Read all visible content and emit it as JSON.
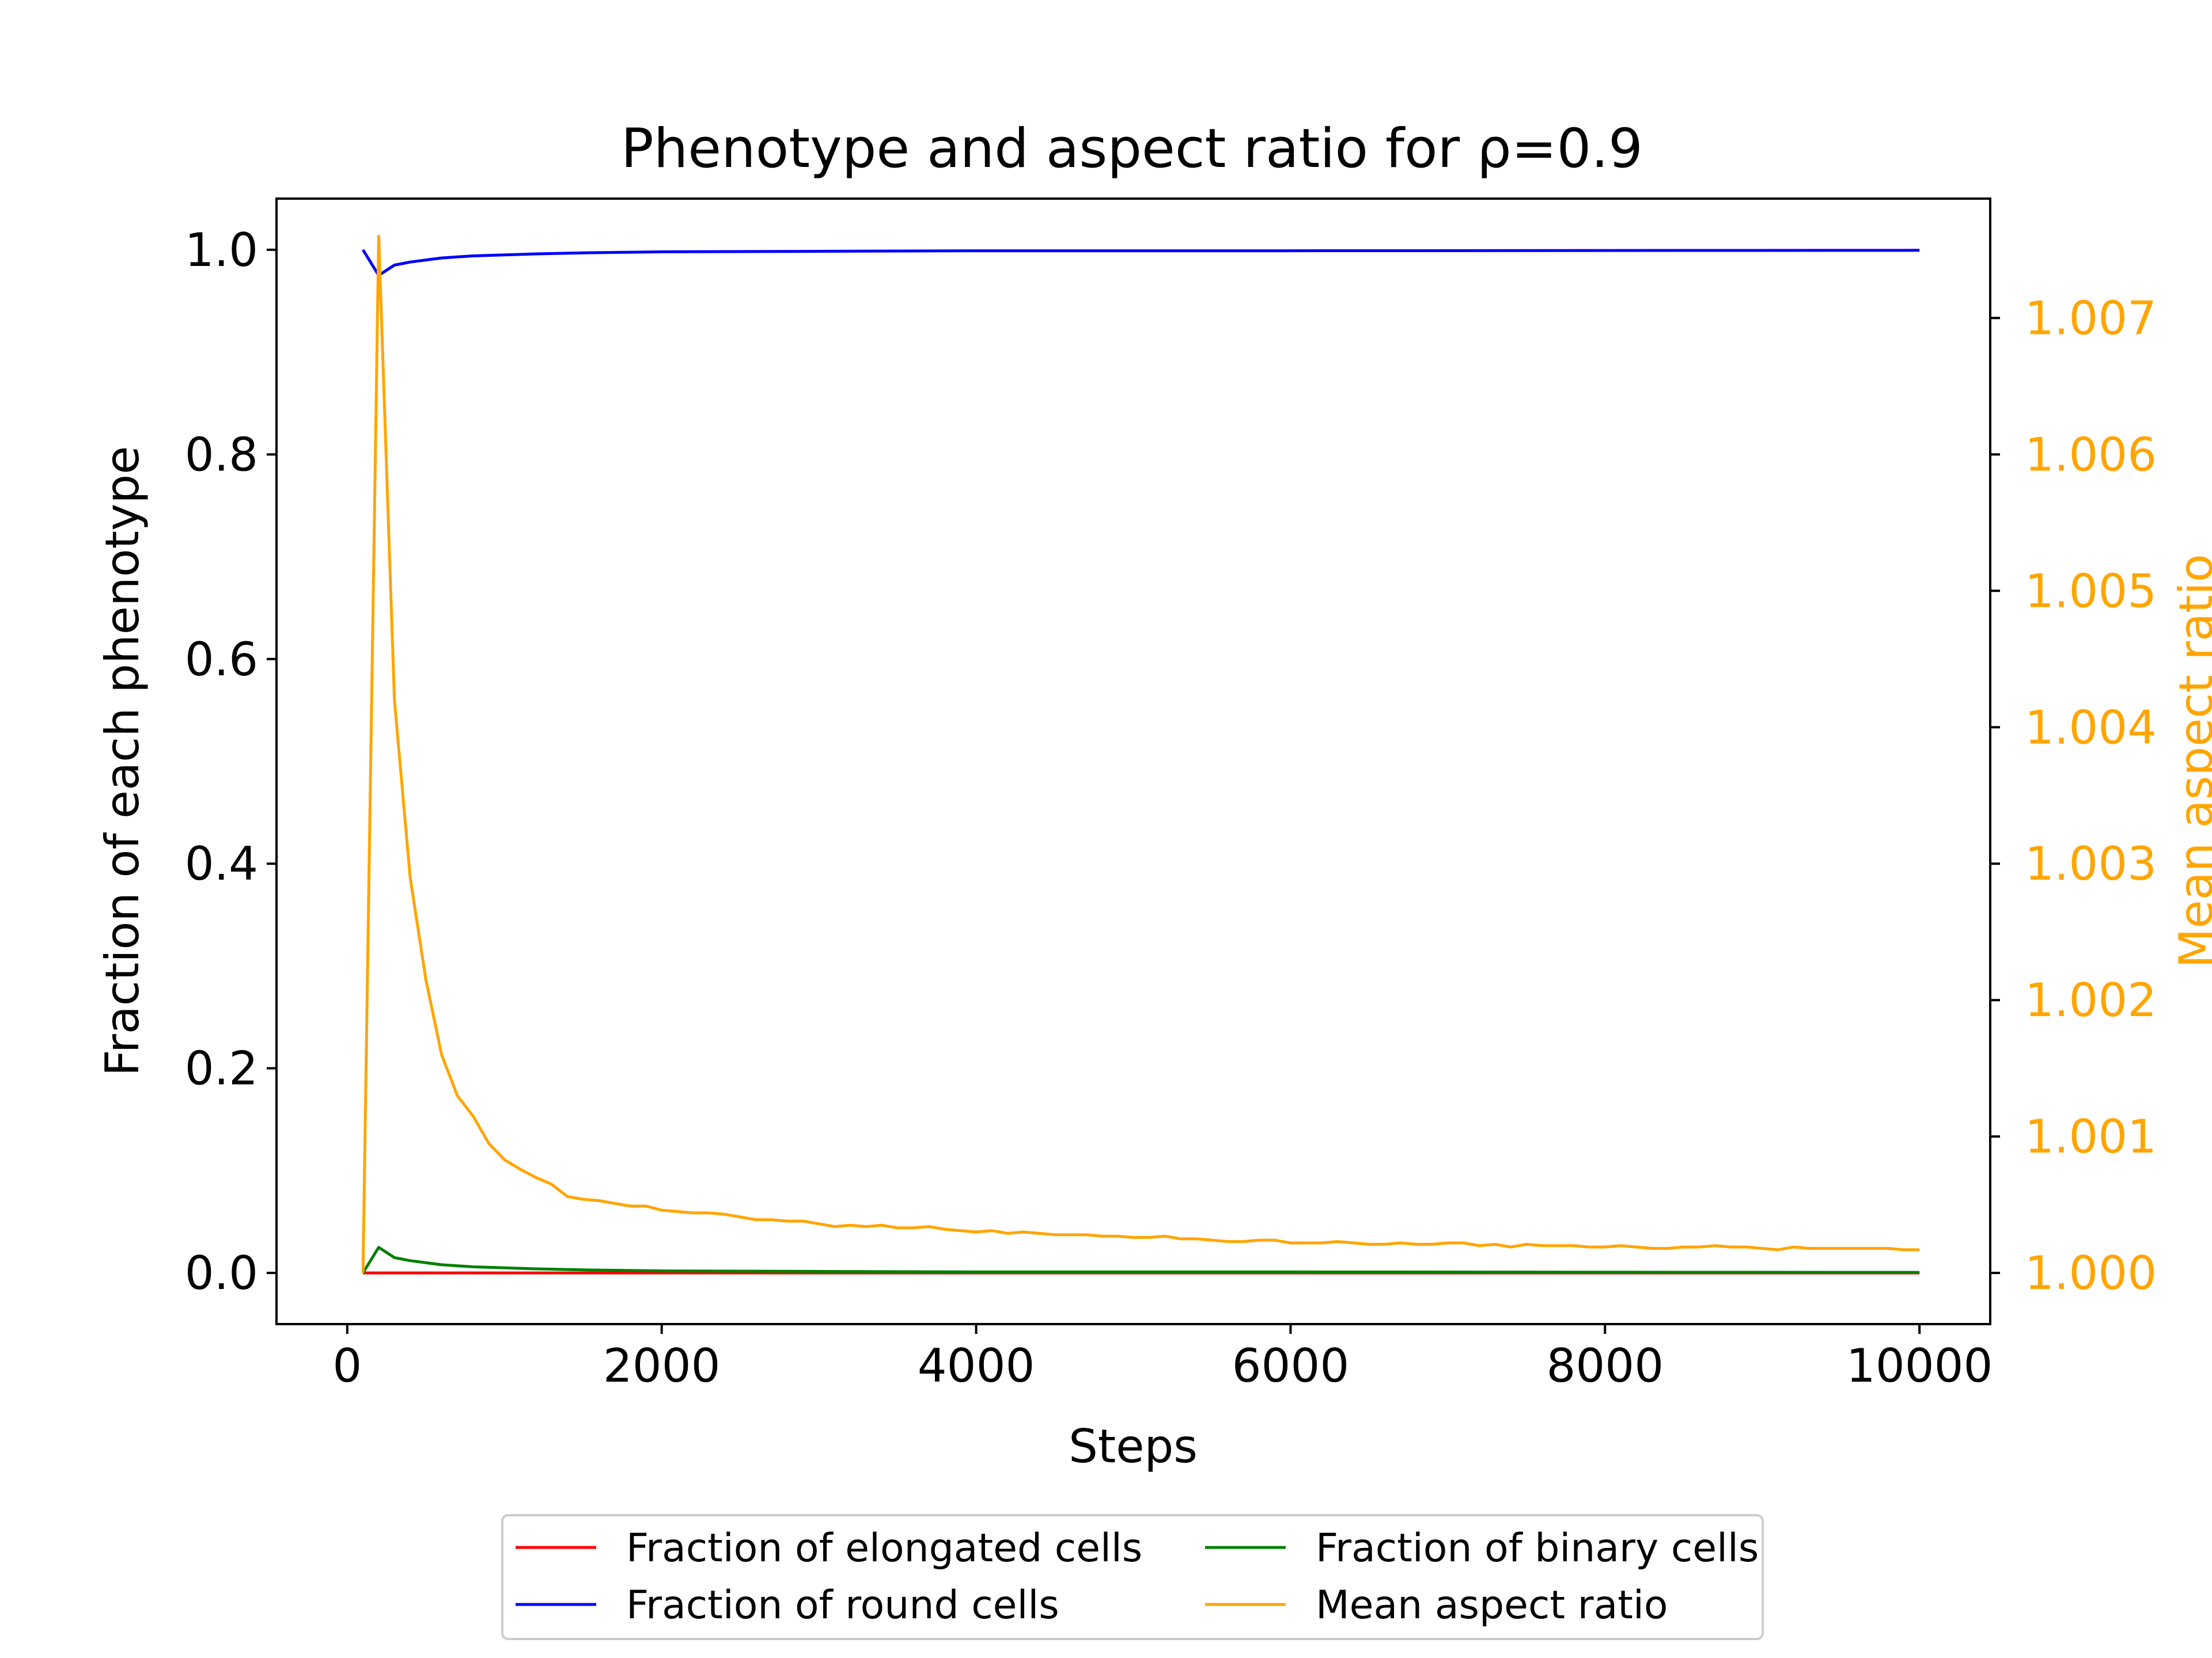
{
  "chart_data": {
    "type": "line",
    "title": "Phenotype and aspect ratio for ρ=0.9",
    "xlabel": "Steps",
    "ylabel": "Fraction of each phenotype",
    "y2label": "Mean aspect ratio",
    "xlim": [
      -450,
      10450
    ],
    "ylim": [
      -0.05,
      1.05
    ],
    "y2lim": [
      0.999625,
      1.007875
    ],
    "xticks": [
      0,
      2000,
      4000,
      6000,
      8000,
      10000
    ],
    "xtick_labels": [
      "0",
      "2000",
      "4000",
      "6000",
      "8000",
      "10000"
    ],
    "yticks": [
      0.0,
      0.2,
      0.4,
      0.6,
      0.8,
      1.0
    ],
    "ytick_labels": [
      "0.0",
      "0.2",
      "0.4",
      "0.6",
      "0.8",
      "1.0"
    ],
    "y2ticks": [
      1.0,
      1.001,
      1.002,
      1.003,
      1.004,
      1.005,
      1.006,
      1.007
    ],
    "y2tick_labels": [
      "1.000",
      "1.001",
      "1.002",
      "1.003",
      "1.004",
      "1.005",
      "1.006",
      "1.007"
    ],
    "y2_color": "#ffa500",
    "grid": false,
    "legend_position": "below-center",
    "legend_columns": 2,
    "series": [
      {
        "name": "Fraction of elongated cells",
        "color": "#ff0000",
        "axis": "left",
        "x": [
          100,
          10000
        ],
        "y": [
          0.0,
          0.0
        ]
      },
      {
        "name": "Fraction of round cells",
        "color": "#0000ff",
        "axis": "left",
        "x": [
          100,
          200,
          300,
          400,
          500,
          600,
          700,
          800,
          1000,
          1200,
          1500,
          2000,
          3000,
          4000,
          5000,
          6000,
          8000,
          10000
        ],
        "y": [
          1.0,
          0.975,
          0.985,
          0.988,
          0.99,
          0.992,
          0.993,
          0.994,
          0.995,
          0.996,
          0.997,
          0.998,
          0.9985,
          0.999,
          0.999,
          0.999,
          0.9993,
          0.9995
        ]
      },
      {
        "name": "Fraction of binary cells",
        "color": "#008000",
        "axis": "left",
        "x": [
          100,
          200,
          300,
          400,
          500,
          600,
          700,
          800,
          1000,
          1200,
          1500,
          2000,
          3000,
          4000,
          5000,
          6000,
          8000,
          10000
        ],
        "y": [
          0.0,
          0.025,
          0.015,
          0.012,
          0.01,
          0.008,
          0.007,
          0.006,
          0.005,
          0.004,
          0.003,
          0.002,
          0.0015,
          0.001,
          0.001,
          0.001,
          0.0007,
          0.0005
        ]
      },
      {
        "name": "Mean aspect ratio",
        "color": "#ffa500",
        "axis": "right",
        "x": [
          100,
          200,
          300,
          400,
          500,
          600,
          700,
          800,
          900,
          1000,
          1100,
          1200,
          1300,
          1400,
          1500,
          1600,
          1700,
          1800,
          1900,
          2000,
          2100,
          2200,
          2300,
          2400,
          2500,
          2600,
          2700,
          2800,
          2900,
          3000,
          3100,
          3200,
          3300,
          3400,
          3500,
          3600,
          3700,
          3800,
          3900,
          4000,
          4100,
          4200,
          4300,
          4400,
          4500,
          4600,
          4700,
          4800,
          4900,
          5000,
          5100,
          5200,
          5300,
          5400,
          5500,
          5600,
          5700,
          5800,
          5900,
          6000,
          6100,
          6200,
          6300,
          6400,
          6500,
          6600,
          6700,
          6800,
          6900,
          7000,
          7100,
          7200,
          7300,
          7400,
          7500,
          7600,
          7700,
          7800,
          7900,
          8000,
          8100,
          8200,
          8300,
          8400,
          8500,
          8600,
          8700,
          8800,
          8900,
          9000,
          9100,
          9200,
          9300,
          9400,
          9500,
          9600,
          9700,
          9800,
          9900,
          10000
        ],
        "y": [
          1.0,
          1.0076,
          1.0042,
          1.0029,
          1.00215,
          1.0016,
          1.0013,
          1.00115,
          1.00095,
          1.00083,
          1.00076,
          1.0007,
          1.00065,
          1.00056,
          1.00054,
          1.00053,
          1.00051,
          1.00049,
          1.00049,
          1.00046,
          1.00045,
          1.00044,
          1.00044,
          1.00043,
          1.00041,
          1.00039,
          1.00039,
          1.00038,
          1.00038,
          1.00036,
          1.00034,
          1.00035,
          1.00034,
          1.00035,
          1.00033,
          1.00033,
          1.00034,
          1.00032,
          1.00031,
          1.0003,
          1.00031,
          1.00029,
          1.0003,
          1.00029,
          1.00028,
          1.00028,
          1.00028,
          1.00027,
          1.00027,
          1.00026,
          1.00026,
          1.00027,
          1.00025,
          1.00025,
          1.00024,
          1.00023,
          1.00023,
          1.00024,
          1.00024,
          1.00022,
          1.00022,
          1.00022,
          1.00023,
          1.00022,
          1.00021,
          1.00021,
          1.00022,
          1.00021,
          1.00021,
          1.00022,
          1.00022,
          1.0002,
          1.00021,
          1.00019,
          1.00021,
          1.0002,
          1.0002,
          1.0002,
          1.00019,
          1.00019,
          1.0002,
          1.00019,
          1.00018,
          1.00018,
          1.00019,
          1.00019,
          1.0002,
          1.00019,
          1.00019,
          1.00018,
          1.00017,
          1.00019,
          1.00018,
          1.00018,
          1.00018,
          1.00018,
          1.00018,
          1.00018,
          1.00017,
          1.00017
        ]
      }
    ]
  }
}
